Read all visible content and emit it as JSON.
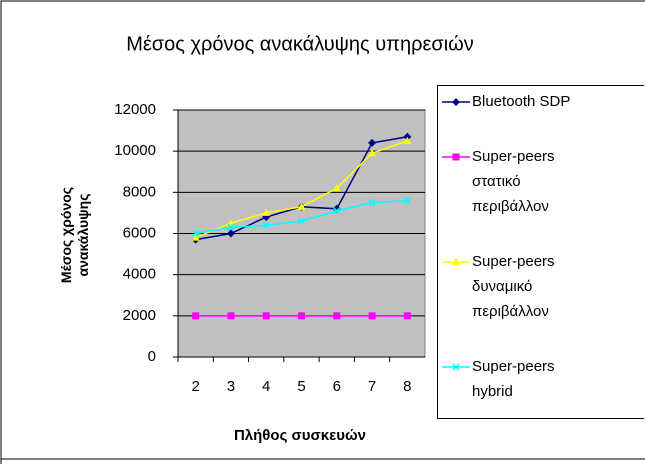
{
  "chart_data": {
    "type": "line",
    "title": "Μέσος χρόνος ανακάλυψης υπηρεσιών",
    "y_label": "Μέσος χρόνος ανακάλυψης",
    "x_label": "Πλήθος συσκευών",
    "categories": [
      "2",
      "3",
      "4",
      "5",
      "6",
      "7",
      "8"
    ],
    "series": [
      {
        "name": "Bluetooth SDP",
        "color": "#000080",
        "marker": "diamond",
        "values": [
          5700,
          6000,
          6800,
          7300,
          7200,
          10400,
          10700
        ]
      },
      {
        "name": "Super-peers στατικό περιβάλλον",
        "color": "#ff00ff",
        "marker": "square",
        "values": [
          2000,
          2000,
          2000,
          2000,
          2000,
          2000,
          2000
        ]
      },
      {
        "name": "Super-peers δυναμικό περιβάλλον",
        "color": "#ffff00",
        "marker": "triangle",
        "values": [
          5800,
          6500,
          7000,
          7300,
          8200,
          9900,
          10500
        ]
      },
      {
        "name": "Super-peers hybrid",
        "color": "#00ffff",
        "marker": "x",
        "values": [
          6000,
          6300,
          6400,
          6600,
          7100,
          7500,
          7600
        ]
      }
    ],
    "ylim": [
      0,
      12000
    ],
    "yticks": [
      0,
      2000,
      4000,
      6000,
      8000,
      10000,
      12000
    ],
    "grid": true,
    "legend": "right"
  }
}
